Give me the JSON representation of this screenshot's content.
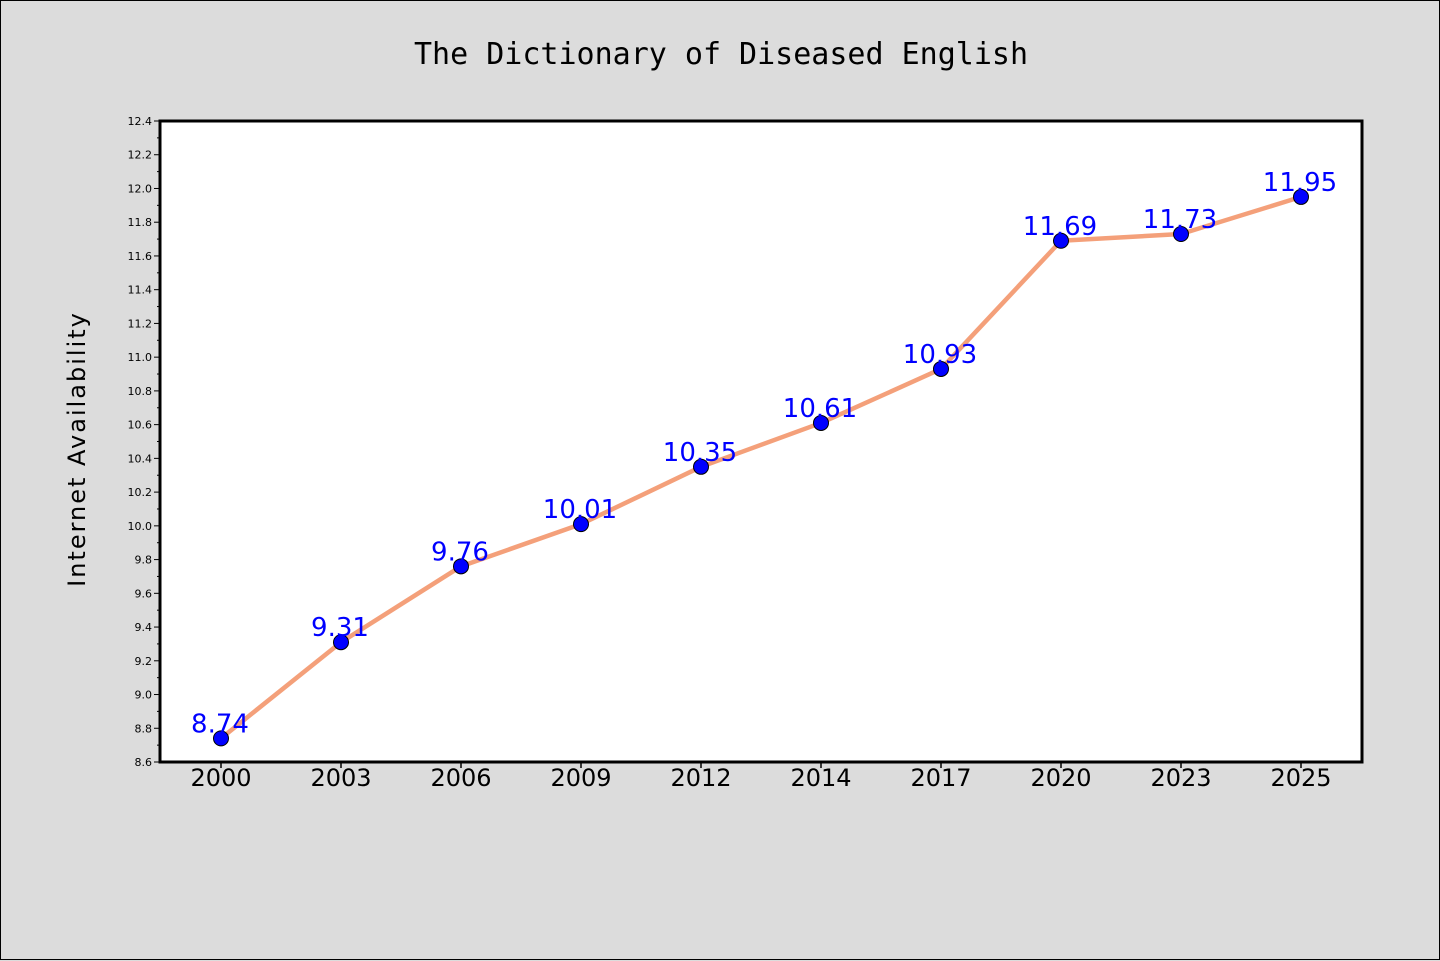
{
  "chart_data": {
    "type": "line",
    "title": "The Dictionary of Diseased English",
    "xlabel": "",
    "ylabel": "Internet Availability",
    "categories": [
      "2000",
      "2003",
      "2006",
      "2009",
      "2012",
      "2014",
      "2017",
      "2020",
      "2023",
      "2025"
    ],
    "series": [
      {
        "values": [
          8.74,
          9.31,
          9.76,
          10.01,
          10.35,
          10.61,
          10.93,
          11.69,
          11.73,
          11.95
        ],
        "line_color": "#f4a07a",
        "marker_color": "#0000ff"
      }
    ],
    "ylim": [
      8.6,
      12.4
    ],
    "yticks": [
      "8.6",
      "8.8",
      "9.0",
      "9.2",
      "9.4",
      "9.6",
      "9.8",
      "10.0",
      "10.2",
      "10.4",
      "10.6",
      "10.8",
      "11.0",
      "11.2",
      "11.4",
      "11.6",
      "11.8",
      "12.0",
      "12.2",
      "12.4"
    ],
    "data_labels": [
      "8.74",
      "9.31",
      "9.76",
      "10.01",
      "10.35",
      "10.61",
      "10.93",
      "11.69",
      "11.73",
      "11.95"
    ],
    "data_label_color": "#0000ff",
    "grid": false,
    "legend": "none",
    "background_color": "#dcdcdc",
    "plot_background_color": "#ffffff"
  }
}
